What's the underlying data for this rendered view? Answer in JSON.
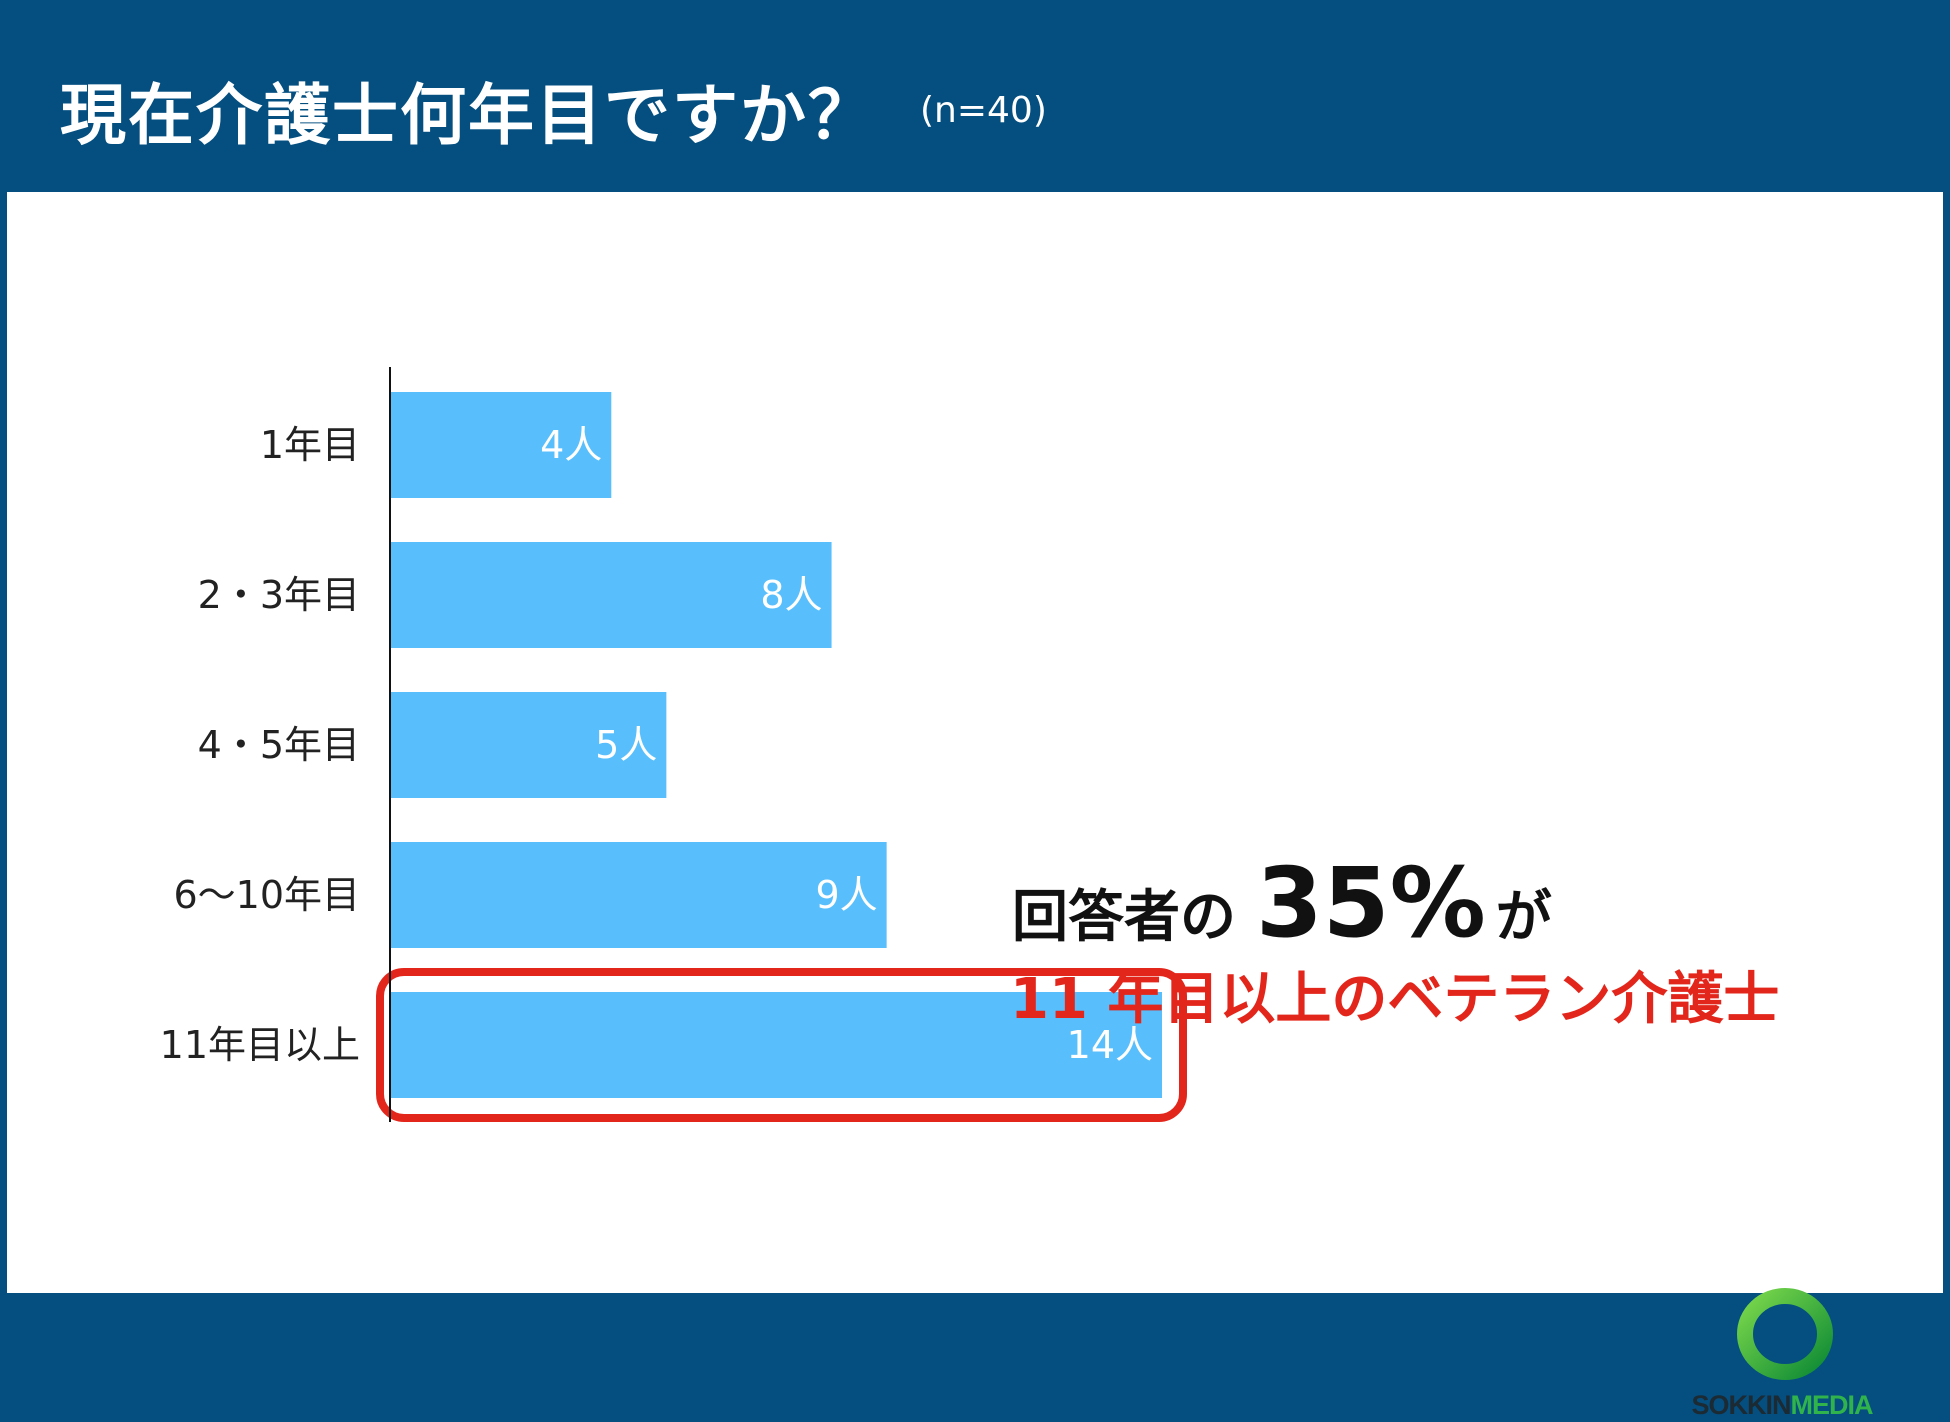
{
  "header": {
    "title": "現在介護士何年目ですか？",
    "sample": "(n=40)"
  },
  "chart_data": {
    "type": "bar",
    "orientation": "horizontal",
    "categories": [
      "1年目",
      "2・3年目",
      "4・5年目",
      "6〜10年目",
      "11年目以上"
    ],
    "values": [
      4,
      8,
      5,
      9,
      14
    ],
    "value_labels": [
      "4人",
      "8人",
      "5人",
      "9人",
      "14人"
    ],
    "xlim": [
      0,
      14
    ],
    "grid": false,
    "highlight_category": "11年目以上",
    "bar_color": "#58bffc",
    "highlight_color": "#e3261b"
  },
  "callout": {
    "lead": "回答者の",
    "percent": "35%",
    "tail": "が",
    "sub": "11 年目以上のベテラン介護士"
  },
  "logo": {
    "part1": "SOKKIN",
    "part2": "MEDIA",
    "ring_color": "#2fb34a"
  }
}
